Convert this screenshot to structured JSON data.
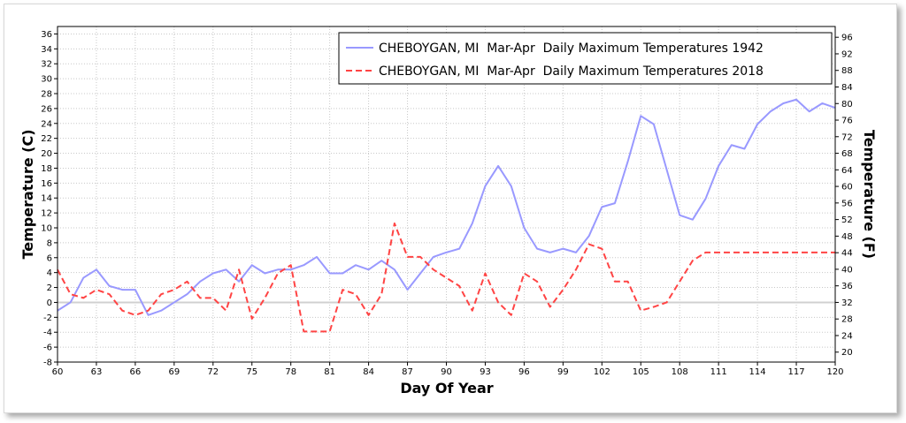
{
  "chart_data": {
    "type": "line",
    "title": "",
    "xlabel": "Day Of Year",
    "ylabel": "Temperature (C)",
    "ylabel_right": "Temperature (F)",
    "xlim": [
      60,
      120
    ],
    "ylim": [
      -8,
      37
    ],
    "ylim_right_F": [
      17.6,
      98.6
    ],
    "grid": true,
    "legend_position": "top-right",
    "x_ticks": [
      60,
      63,
      66,
      69,
      72,
      75,
      78,
      81,
      84,
      87,
      90,
      93,
      96,
      99,
      102,
      105,
      108,
      111,
      114,
      117,
      120
    ],
    "y_ticks": [
      -8,
      -6,
      -4,
      -2,
      0,
      2,
      4,
      6,
      8,
      10,
      12,
      14,
      16,
      18,
      20,
      22,
      24,
      26,
      28,
      30,
      32,
      34,
      36
    ],
    "y_right_ticks": [
      20,
      24,
      28,
      32,
      36,
      40,
      44,
      48,
      52,
      56,
      60,
      64,
      68,
      72,
      76,
      80,
      84,
      88,
      92,
      96
    ],
    "x": [
      60,
      61,
      62,
      63,
      64,
      65,
      66,
      67,
      68,
      69,
      70,
      71,
      72,
      73,
      74,
      75,
      76,
      77,
      78,
      79,
      80,
      81,
      82,
      83,
      84,
      85,
      86,
      87,
      88,
      89,
      90,
      91,
      92,
      93,
      94,
      95,
      96,
      97,
      98,
      99,
      100,
      101,
      102,
      103,
      104,
      105,
      106,
      107,
      108,
      109,
      110,
      111,
      112,
      113,
      114,
      115,
      116,
      117,
      118,
      119,
      120
    ],
    "series": [
      {
        "name": "CHEBOYGAN, MI  Mar-Apr  Daily Maximum Temperatures 1942",
        "color": "#9999ff",
        "style": "solid",
        "values": [
          -1.1,
          0,
          3.3,
          4.4,
          2.2,
          1.7,
          1.7,
          -1.7,
          -1.1,
          0,
          1.1,
          2.8,
          3.9,
          4.4,
          2.8,
          5,
          3.9,
          4.4,
          4.4,
          5,
          6.1,
          3.9,
          3.9,
          5,
          4.4,
          5.6,
          4.4,
          1.7,
          3.9,
          6.1,
          6.7,
          7.2,
          10.6,
          15.6,
          18.3,
          15.6,
          10,
          7.2,
          6.7,
          7.2,
          6.7,
          8.9,
          12.8,
          13.3,
          18.9,
          25,
          23.9,
          17.8,
          11.7,
          11.1,
          13.9,
          18.3,
          21.1,
          20.6,
          23.9,
          25.6,
          26.7,
          27.2,
          25.6,
          26.7,
          26.1
        ]
      },
      {
        "name": "CHEBOYGAN, MI  Mar-Apr  Daily Maximum Temperatures 2018",
        "color": "#ff4444",
        "style": "dashed",
        "values": [
          4.4,
          1.1,
          0.6,
          1.7,
          1.1,
          -1.1,
          -1.7,
          -1.1,
          1.1,
          1.7,
          2.8,
          0.6,
          0.6,
          -1.1,
          4.4,
          -2.2,
          0.6,
          3.9,
          5,
          -3.9,
          -3.9,
          -3.9,
          1.7,
          1.1,
          -1.7,
          1.1,
          10.6,
          6.1,
          6.1,
          4.4,
          3.3,
          2.2,
          -1.1,
          3.9,
          0,
          -1.7,
          3.9,
          2.8,
          -0.6,
          1.7,
          4.4,
          7.8,
          7.2,
          2.8,
          2.8,
          -1.1,
          -0.6,
          0,
          2.8,
          5.6,
          6.7,
          6.7,
          6.7,
          6.7,
          6.7,
          6.7,
          6.7,
          6.7,
          6.7,
          6.7,
          6.7
        ]
      }
    ]
  }
}
